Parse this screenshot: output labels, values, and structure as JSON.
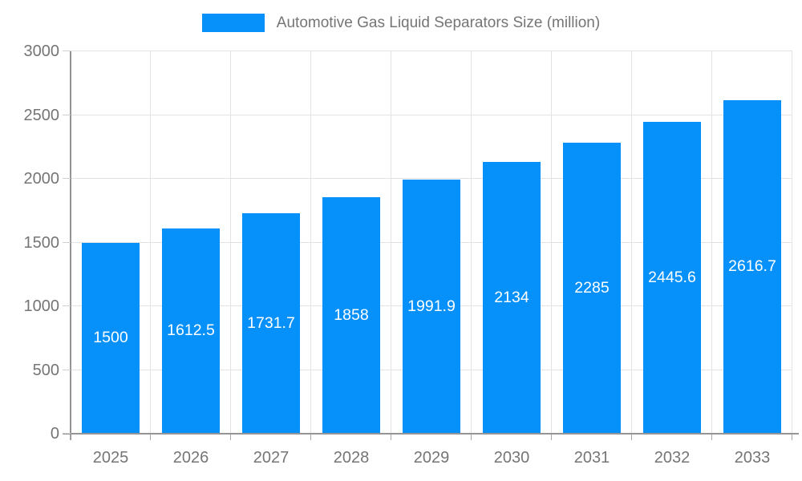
{
  "legend": {
    "label": "Automotive Gas Liquid Separators Size (million)"
  },
  "chart_data": {
    "type": "bar",
    "title": "Automotive Gas Liquid Separators Size (million)",
    "categories": [
      "2025",
      "2026",
      "2027",
      "2028",
      "2029",
      "2030",
      "2031",
      "2032",
      "2033"
    ],
    "values": [
      1500,
      1612.5,
      1731.7,
      1858,
      1991.9,
      2134,
      2285,
      2445.6,
      2616.7
    ],
    "xlabel": "",
    "ylabel": "",
    "ylim": [
      0,
      3000
    ],
    "yticks": [
      0,
      500,
      1000,
      1500,
      2000,
      2500,
      3000
    ],
    "grid": true,
    "legend_position": "top",
    "bar_color": "#0590fa",
    "bar_label_color": "#ffffff",
    "axis_color": "#949494",
    "grid_color": "#e3e3e3",
    "tick_label_color": "#757575"
  }
}
